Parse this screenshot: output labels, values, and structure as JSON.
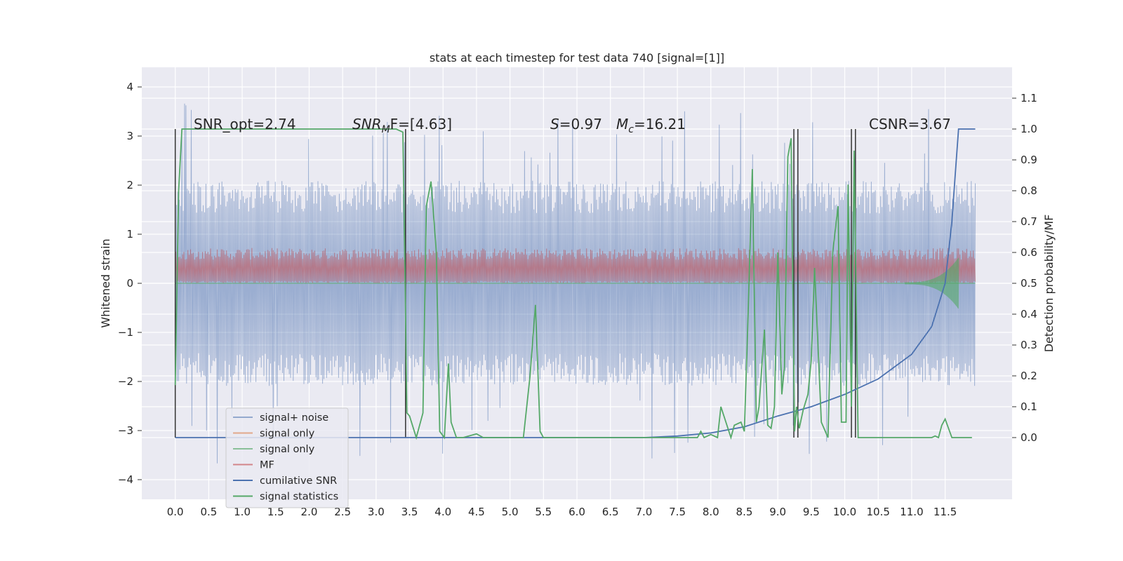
{
  "chart_data": {
    "type": "line",
    "title": "stats at each timestep for test data 740 [signal=[1]]",
    "ylabel_left": "Whitened strain",
    "ylabel_right": "Detection probability/MF",
    "xlabel": "",
    "xlim": [
      -0.5,
      12.5
    ],
    "ylim_left": [
      -4.4,
      4.4
    ],
    "ylim_right": [
      -0.2,
      1.2
    ],
    "x_ticks": [
      "0.0",
      "0.5",
      "1.0",
      "1.5",
      "2.0",
      "2.5",
      "3.0",
      "3.5",
      "4.0",
      "4.5",
      "5.0",
      "5.5",
      "6.0",
      "6.5",
      "7.0",
      "7.5",
      "8.0",
      "8.5",
      "9.0",
      "9.5",
      "10.0",
      "10.5",
      "11.0",
      "11.5"
    ],
    "y_ticks_left": [
      "−4",
      "−3",
      "−2",
      "−1",
      "0",
      "1",
      "2",
      "3",
      "4"
    ],
    "y_ticks_right": [
      "0.0",
      "0.1",
      "0.2",
      "0.3",
      "0.4",
      "0.5",
      "0.6",
      "0.7",
      "0.8",
      "0.9",
      "1.0",
      "1.1"
    ],
    "grid": true,
    "legend_position": "lower-left",
    "annotations": {
      "snr_opt": "SNR_opt=2.74",
      "snr_mf_base": "SNR",
      "snr_mf_sub": "M",
      "snr_mf_rest": "F=[4.63]",
      "s_label": "S",
      "s_value": "=0.97",
      "mc_label": "M",
      "mc_sub": "c",
      "mc_value": "=16.21",
      "csnr": "CSNR=3.67"
    },
    "legend": [
      {
        "label": "signal+ noise",
        "color": "#4c72b0"
      },
      {
        "label": "signal only",
        "color": "#dd8452"
      },
      {
        "label": "signal only",
        "color": "#55a868"
      },
      {
        "label": "MF",
        "color": "#c44e52"
      },
      {
        "label": "cumilative SNR",
        "color": "#4c72b0"
      },
      {
        "label": "signal statistics",
        "color": "#55a868"
      }
    ],
    "series": [
      {
        "name": "signal+ noise",
        "axis": "left",
        "style": "dense noise, amplitude up to ±3.9",
        "envelope_upper": 1.9,
        "envelope_lower": -1.9,
        "peak_max": 3.95,
        "peak_min": -4.05
      },
      {
        "name": "MF",
        "axis": "left",
        "style": "dense band between 0.0 and ~0.6",
        "band": [
          0.0,
          0.6
        ]
      },
      {
        "name": "cumilative SNR",
        "axis": "right",
        "x": [
          0.0,
          7.0,
          7.5,
          8.0,
          8.5,
          9.0,
          9.5,
          10.0,
          10.5,
          11.0,
          11.3,
          11.5,
          11.6,
          11.65,
          11.7,
          11.95
        ],
        "y": [
          0.0,
          0.0,
          0.005,
          0.015,
          0.035,
          0.07,
          0.1,
          0.14,
          0.19,
          0.27,
          0.36,
          0.5,
          0.7,
          0.85,
          1.0,
          1.0
        ]
      },
      {
        "name": "signal statistics",
        "axis": "right",
        "x": [
          0.0,
          0.05,
          0.1,
          0.15,
          1.5,
          3.3,
          3.4,
          3.44,
          3.46,
          3.5,
          3.6,
          3.7,
          3.75,
          3.82,
          3.9,
          3.95,
          4.02,
          4.08,
          4.12,
          4.2,
          4.3,
          4.5,
          4.6,
          5.2,
          5.3,
          5.38,
          5.45,
          5.5,
          7.8,
          7.85,
          7.9,
          8.0,
          8.1,
          8.15,
          8.3,
          8.35,
          8.45,
          8.5,
          8.55,
          8.62,
          8.68,
          8.72,
          8.8,
          8.85,
          8.9,
          8.95,
          9.0,
          9.06,
          9.1,
          9.15,
          9.2,
          9.25,
          9.28,
          9.32,
          9.38,
          9.45,
          9.5,
          9.55,
          9.65,
          9.75,
          9.82,
          9.9,
          9.95,
          10.02,
          10.05,
          10.1,
          10.14,
          10.2,
          10.25,
          10.35,
          11.0,
          11.3,
          11.35,
          11.4,
          11.45,
          11.5,
          11.6,
          11.8,
          11.9
        ],
        "y": [
          0.17,
          0.8,
          1.0,
          1.0,
          1.0,
          1.0,
          0.99,
          0.4,
          0.08,
          0.07,
          0.0,
          0.08,
          0.75,
          0.83,
          0.6,
          0.02,
          0.0,
          0.24,
          0.05,
          0.0,
          0.0,
          0.012,
          0.0,
          0.0,
          0.2,
          0.43,
          0.02,
          0.0,
          0.0,
          0.02,
          0.0,
          0.01,
          0.0,
          0.1,
          0.0,
          0.04,
          0.05,
          0.02,
          0.35,
          0.87,
          0.05,
          0.1,
          0.35,
          0.04,
          0.03,
          0.1,
          0.6,
          0.14,
          0.23,
          0.91,
          0.97,
          0.02,
          0.1,
          0.03,
          0.09,
          0.14,
          0.25,
          0.55,
          0.05,
          0.0,
          0.6,
          0.75,
          0.05,
          0.05,
          0.82,
          0.1,
          0.93,
          0.0,
          0.0,
          0.0,
          0.0,
          0.0,
          0.005,
          0.0,
          0.04,
          0.06,
          0.0,
          0.0,
          0.0
        ]
      }
    ],
    "vertical_markers": [
      {
        "x": 0.0,
        "ymin": 0.0,
        "ymax": 1.0
      },
      {
        "x": 3.44,
        "ymin": 0.0,
        "ymax": 1.0
      },
      {
        "x": 9.24,
        "ymin": 0.0,
        "ymax": 1.0
      },
      {
        "x": 9.3,
        "ymin": 0.0,
        "ymax": 1.0
      },
      {
        "x": 10.1,
        "ymin": 0.0,
        "ymax": 1.0
      },
      {
        "x": 10.16,
        "ymin": 0.0,
        "ymax": 1.0
      }
    ],
    "colors": {
      "plot_background": "#eaeaf2",
      "grid": "#ffffff",
      "noise": "#4c72b0",
      "mf": "#c44e52",
      "signal_only_green": "#55a868",
      "cumulative": "#4c72b0",
      "statistics": "#55a868",
      "marker": "#333333"
    }
  }
}
